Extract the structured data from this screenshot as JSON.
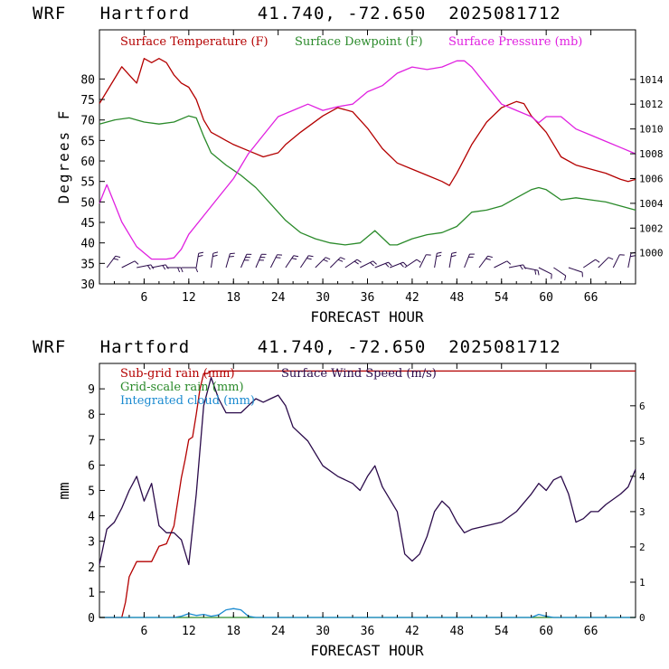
{
  "colors": {
    "temperature": "#b40000",
    "dewpoint": "#2a8a2a",
    "pressure": "#e020e0",
    "subgrid_rain": "#b40000",
    "gridscale_rain": "#2a8a2a",
    "integrated_cloud": "#1a8ad0",
    "wind": "#2a0a4a",
    "wind_barbs": "#2a0a4a"
  },
  "chart_data": [
    {
      "type": "line",
      "title": "WRF   Hartford      41.740, -72.650  2025081712",
      "xlabel": "FORECAST HOUR",
      "ylabel": "Degrees F",
      "xlim": [
        0,
        72
      ],
      "ylim": [
        30,
        92
      ],
      "y2lim": [
        997.5,
        1018
      ],
      "grid": false,
      "legend": "top-left",
      "x_ticks": [
        6,
        12,
        18,
        24,
        30,
        36,
        42,
        48,
        54,
        60,
        66
      ],
      "y_ticks": [
        30,
        35,
        40,
        45,
        50,
        55,
        60,
        65,
        70,
        75,
        80
      ],
      "y2_ticks": [
        1000,
        1002,
        1004,
        1006,
        1008,
        1010,
        1012,
        1014
      ],
      "series": [
        {
          "name": "Surface Temperature (F)",
          "axis": "left",
          "x": [
            0,
            1,
            2,
            3,
            4,
            5,
            6,
            7,
            8,
            9,
            10,
            11,
            12,
            13,
            14,
            15,
            16,
            17,
            18,
            20,
            22,
            24,
            25,
            27,
            30,
            32,
            34,
            36,
            38,
            40,
            42,
            44,
            46,
            47,
            48,
            50,
            52,
            54,
            56,
            57,
            58,
            60,
            62,
            64,
            66,
            68,
            70,
            71,
            72
          ],
          "y": [
            74,
            77,
            80,
            83,
            81,
            79,
            85,
            84,
            85,
            84,
            81,
            79,
            78,
            75,
            70,
            67,
            66,
            65,
            64,
            62.5,
            61,
            62,
            64,
            67,
            71,
            73,
            72,
            68,
            63,
            59.5,
            58,
            56.5,
            55,
            54,
            57,
            64,
            69.5,
            73,
            74.5,
            74,
            71,
            67,
            61,
            59,
            58,
            57,
            55.5,
            55,
            55.5
          ]
        },
        {
          "name": "Surface Dewpoint (F)",
          "axis": "left",
          "x": [
            0,
            2,
            4,
            6,
            8,
            10,
            12,
            13,
            14,
            15,
            17,
            19,
            21,
            23,
            25,
            27,
            29,
            31,
            33,
            35,
            37,
            39,
            40,
            42,
            44,
            46,
            48,
            50,
            52,
            54,
            56,
            58,
            59,
            60,
            62,
            64,
            66,
            68,
            70,
            72
          ],
          "y": [
            69,
            70,
            70.5,
            69.5,
            69,
            69.5,
            71,
            70.5,
            66,
            62,
            59,
            56.5,
            53.5,
            49.5,
            45.5,
            42.5,
            41,
            40,
            39.5,
            40,
            43,
            39.5,
            39.5,
            41,
            42,
            42.5,
            44,
            47.5,
            48,
            49,
            51,
            53,
            53.5,
            53,
            50.5,
            51,
            50.5,
            50,
            49,
            48
          ]
        },
        {
          "name": "Surface Pressure (mb)",
          "axis": "right",
          "x": [
            0,
            1,
            2,
            3,
            4,
            5,
            6,
            7,
            8,
            9,
            10,
            11,
            12,
            14,
            16,
            18,
            20,
            22,
            24,
            26,
            28,
            30,
            32,
            34,
            36,
            38,
            40,
            42,
            44,
            46,
            48,
            49,
            50,
            52,
            54,
            56,
            58,
            59,
            60,
            62,
            64,
            66,
            68,
            70,
            72
          ],
          "y": [
            1004,
            1005.5,
            1004,
            1002.5,
            1001.5,
            1000.5,
            1000,
            999.5,
            999.5,
            999.5,
            999.6,
            1000.3,
            1001.5,
            1003,
            1004.5,
            1006,
            1008,
            1009.5,
            1011,
            1011.5,
            1012,
            1011.5,
            1011.8,
            1012,
            1013,
            1013.5,
            1014.5,
            1015,
            1014.8,
            1015,
            1015.5,
            1015.5,
            1015,
            1013.5,
            1012,
            1011.5,
            1011,
            1010.5,
            1011,
            1011,
            1010,
            1009.5,
            1009,
            1008.5,
            1008
          ]
        }
      ],
      "wind_barbs": {
        "name": "Surface wind barbs",
        "x": [
          1,
          3,
          5,
          7,
          9,
          11,
          13,
          15,
          17,
          19,
          21,
          23,
          25,
          27,
          29,
          31,
          33,
          35,
          37,
          39,
          41,
          43,
          45,
          47,
          49,
          51,
          53,
          55,
          57,
          59,
          61,
          63,
          65,
          67,
          69,
          71
        ],
        "u": [
          -3,
          -4,
          -5,
          -5,
          -5,
          -4,
          -1,
          -1,
          -2,
          -3,
          -3,
          -3,
          -4,
          -4,
          -5,
          -5,
          -6,
          -6,
          -5,
          -5,
          -3,
          -2,
          -1,
          -1,
          -2,
          -3,
          -4,
          -5,
          -5,
          -4,
          -3,
          -3,
          -3,
          -3,
          -2,
          -1
        ],
        "v": [
          -4,
          -2,
          -1,
          -1,
          0,
          0,
          -6,
          -7,
          -7,
          -7,
          -7,
          -6,
          -6,
          -6,
          -5,
          -5,
          -4,
          -3,
          -2,
          -2,
          -2,
          -4,
          -6,
          -6,
          -5,
          -4,
          -2,
          -1,
          1,
          2,
          2,
          1,
          -2,
          -3,
          -4,
          -5
        ]
      }
    },
    {
      "type": "line",
      "title": "WRF   Hartford      41.740, -72.650  2025081712",
      "xlabel": "FORECAST HOUR",
      "ylabel": "mm",
      "xlim": [
        0,
        72
      ],
      "ylim": [
        0,
        10
      ],
      "y2lim": [
        0,
        7.2
      ],
      "grid": false,
      "legend": "top-left",
      "x_ticks": [
        6,
        12,
        18,
        24,
        30,
        36,
        42,
        48,
        54,
        60,
        66
      ],
      "y_ticks": [
        0,
        1,
        2,
        3,
        4,
        5,
        6,
        7,
        8,
        9
      ],
      "y2_ticks": [
        0,
        1,
        2,
        3,
        4,
        5,
        6
      ],
      "series": [
        {
          "name": "Sub-grid rain (mm)",
          "axis": "left",
          "x": [
            0,
            3,
            3.5,
            4,
            5,
            6,
            7,
            8,
            9,
            10,
            11,
            11.5,
            12,
            12.5,
            13,
            13.5,
            14,
            14.5,
            15,
            72
          ],
          "y": [
            0,
            0,
            0.6,
            1.6,
            2.2,
            2.2,
            2.2,
            2.8,
            2.9,
            3.6,
            5.5,
            6.2,
            7.0,
            7.1,
            8.0,
            9.0,
            9.6,
            9.6,
            9.7,
            9.7
          ]
        },
        {
          "name": "Grid-scale rain (mm)",
          "axis": "left",
          "x": [
            0,
            72
          ],
          "y": [
            0,
            0
          ]
        },
        {
          "name": "Integrated cloud (mm)",
          "axis": "left",
          "x": [
            0,
            10,
            11,
            12,
            13,
            14,
            15,
            16,
            17,
            18,
            19,
            20,
            21,
            58,
            59,
            60,
            61,
            72
          ],
          "y": [
            0,
            0,
            0.05,
            0.15,
            0.08,
            0.12,
            0.05,
            0.1,
            0.3,
            0.35,
            0.3,
            0.05,
            0,
            0,
            0.12,
            0.05,
            0,
            0
          ]
        },
        {
          "name": "Surface Wind Speed (m/s)",
          "axis": "right",
          "x": [
            0,
            1,
            2,
            3,
            4,
            5,
            6,
            7,
            8,
            9,
            10,
            11,
            12,
            13,
            14,
            15,
            16,
            17,
            18,
            19,
            20,
            21,
            22,
            23,
            24,
            25,
            26,
            28,
            30,
            32,
            34,
            35,
            36,
            37,
            38,
            40,
            41,
            42,
            43,
            44,
            45,
            46,
            47,
            48,
            49,
            50,
            52,
            54,
            56,
            58,
            59,
            60,
            61,
            62,
            63,
            64,
            65,
            66,
            67,
            68,
            70,
            71,
            72
          ],
          "y": [
            1.5,
            2.5,
            2.7,
            3.1,
            3.6,
            4.0,
            3.3,
            3.8,
            2.6,
            2.4,
            2.4,
            2.2,
            1.5,
            3.5,
            6.0,
            6.8,
            6.2,
            5.8,
            5.8,
            5.8,
            6.0,
            6.2,
            6.1,
            6.2,
            6.3,
            6.0,
            5.4,
            5.0,
            4.3,
            4.0,
            3.8,
            3.6,
            4.0,
            4.3,
            3.7,
            3.0,
            1.8,
            1.6,
            1.8,
            2.3,
            3.0,
            3.3,
            3.1,
            2.7,
            2.4,
            2.5,
            2.6,
            2.7,
            3.0,
            3.5,
            3.8,
            3.6,
            3.9,
            4.0,
            3.5,
            2.7,
            2.8,
            3.0,
            3.0,
            3.2,
            3.5,
            3.7,
            4.2
          ]
        }
      ]
    }
  ]
}
